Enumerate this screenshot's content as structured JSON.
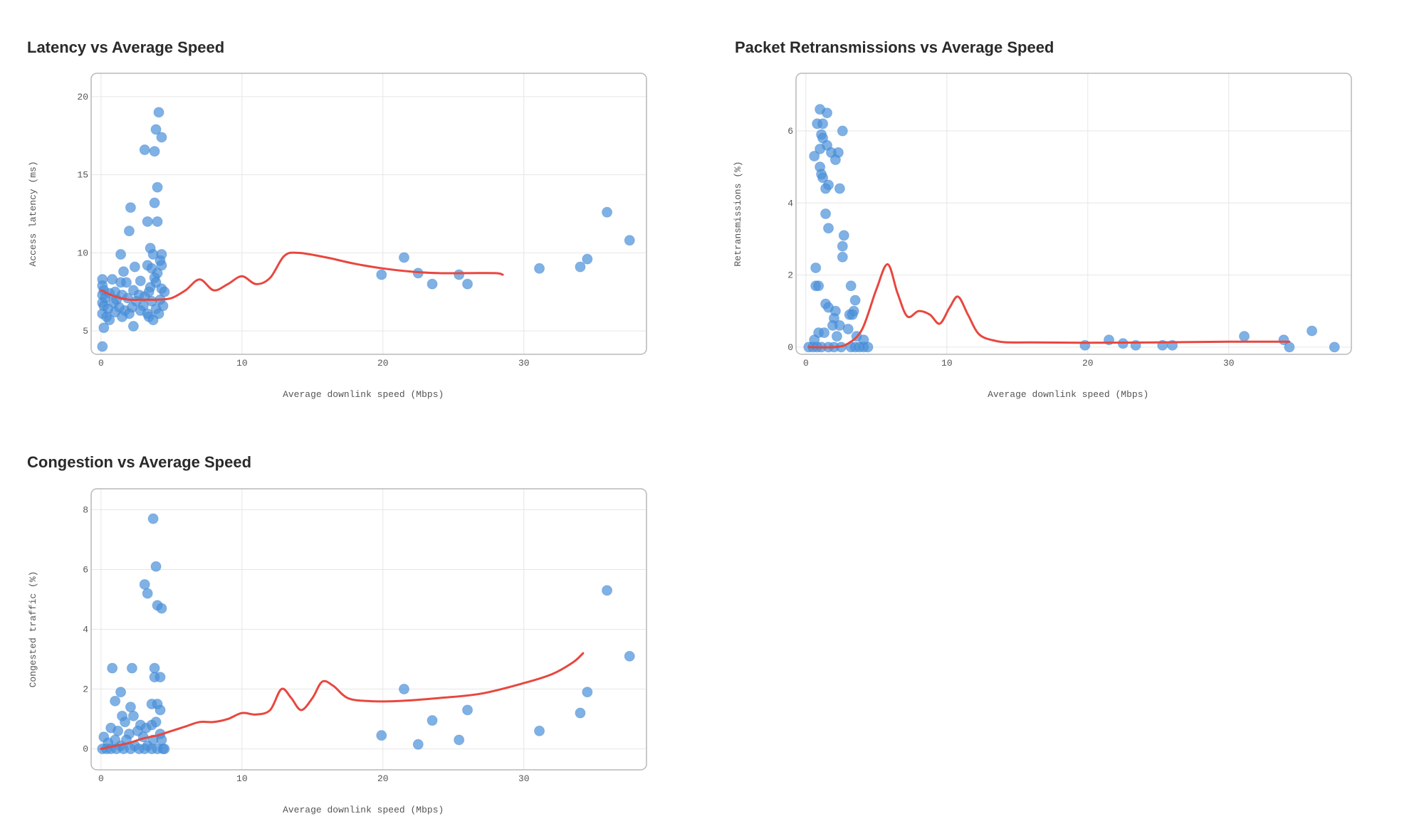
{
  "colors": {
    "points": "#4a90d9",
    "trend": "#e8473f",
    "grid": "#e6e6e6",
    "frame": "#b8b8b8"
  },
  "chart_data": [
    {
      "id": "latency",
      "type": "scatter",
      "title": "Latency vs Average Speed",
      "xlabel": "Average downlink speed (Mbps)",
      "ylabel": "Access latency (ms)",
      "xlim": [
        -0.7,
        38.7
      ],
      "ylim": [
        3.5,
        21.5
      ],
      "xticks": [
        0,
        10,
        20,
        30
      ],
      "yticks": [
        5,
        10,
        15,
        20
      ],
      "points": [
        [
          4.1,
          19.0
        ],
        [
          3.9,
          17.9
        ],
        [
          4.3,
          17.4
        ],
        [
          3.1,
          16.6
        ],
        [
          3.8,
          16.5
        ],
        [
          4.0,
          14.2
        ],
        [
          3.8,
          13.2
        ],
        [
          2.1,
          12.9
        ],
        [
          3.3,
          12.0
        ],
        [
          4.0,
          12.0
        ],
        [
          2.0,
          11.4
        ],
        [
          3.5,
          10.3
        ],
        [
          1.4,
          9.9
        ],
        [
          3.7,
          9.9
        ],
        [
          4.3,
          9.9
        ],
        [
          4.2,
          9.5
        ],
        [
          3.3,
          9.2
        ],
        [
          4.3,
          9.2
        ],
        [
          3.6,
          9.0
        ],
        [
          2.4,
          9.1
        ],
        [
          1.6,
          8.8
        ],
        [
          4.0,
          8.7
        ],
        [
          3.8,
          8.4
        ],
        [
          0.1,
          8.3
        ],
        [
          0.8,
          8.3
        ],
        [
          1.4,
          8.1
        ],
        [
          2.8,
          8.2
        ],
        [
          3.9,
          8.1
        ],
        [
          0.1,
          7.9
        ],
        [
          1.8,
          8.1
        ],
        [
          3.5,
          7.8
        ],
        [
          4.3,
          7.7
        ],
        [
          0.2,
          7.6
        ],
        [
          1.0,
          7.5
        ],
        [
          2.3,
          7.6
        ],
        [
          3.4,
          7.5
        ],
        [
          4.5,
          7.5
        ],
        [
          0.1,
          7.3
        ],
        [
          0.6,
          7.4
        ],
        [
          1.5,
          7.3
        ],
        [
          2.7,
          7.3
        ],
        [
          3.1,
          7.2
        ],
        [
          0.3,
          7.1
        ],
        [
          1.1,
          7.0
        ],
        [
          1.9,
          7.1
        ],
        [
          4.2,
          7.0
        ],
        [
          0.1,
          6.8
        ],
        [
          0.9,
          6.8
        ],
        [
          2.5,
          6.9
        ],
        [
          3.6,
          6.9
        ],
        [
          4.4,
          6.6
        ],
        [
          0.2,
          6.6
        ],
        [
          1.3,
          6.5
        ],
        [
          2.2,
          6.5
        ],
        [
          3.0,
          6.6
        ],
        [
          0.5,
          6.4
        ],
        [
          1.7,
          6.3
        ],
        [
          2.8,
          6.3
        ],
        [
          3.9,
          6.4
        ],
        [
          0.1,
          6.1
        ],
        [
          1.0,
          6.2
        ],
        [
          2.0,
          6.1
        ],
        [
          3.3,
          6.1
        ],
        [
          4.1,
          6.1
        ],
        [
          0.4,
          5.9
        ],
        [
          1.5,
          5.9
        ],
        [
          3.4,
          5.9
        ],
        [
          3.7,
          5.7
        ],
        [
          0.6,
          5.7
        ],
        [
          2.3,
          5.3
        ],
        [
          0.2,
          5.2
        ],
        [
          0.1,
          4.0
        ],
        [
          21.5,
          9.7
        ],
        [
          19.9,
          8.6
        ],
        [
          22.5,
          8.7
        ],
        [
          23.5,
          8.0
        ],
        [
          25.4,
          8.6
        ],
        [
          26.0,
          8.0
        ],
        [
          31.1,
          9.0
        ],
        [
          34.0,
          9.1
        ],
        [
          34.5,
          9.6
        ],
        [
          35.9,
          12.6
        ],
        [
          37.5,
          10.8
        ]
      ],
      "trend": [
        [
          0,
          7.6
        ],
        [
          1,
          7.2
        ],
        [
          2,
          7.0
        ],
        [
          3,
          7.0
        ],
        [
          4,
          7.0
        ],
        [
          5,
          7.1
        ],
        [
          6,
          7.6
        ],
        [
          7,
          8.3
        ],
        [
          8,
          7.6
        ],
        [
          9,
          8.0
        ],
        [
          10,
          8.5
        ],
        [
          11,
          8.0
        ],
        [
          12,
          8.4
        ],
        [
          13,
          9.8
        ],
        [
          14,
          10.0
        ],
        [
          16,
          9.7
        ],
        [
          18,
          9.3
        ],
        [
          20,
          9.0
        ],
        [
          22,
          8.8
        ],
        [
          24,
          8.7
        ],
        [
          26,
          8.7
        ],
        [
          28,
          8.7
        ],
        [
          28.5,
          8.6
        ]
      ]
    },
    {
      "id": "retransmissions",
      "type": "scatter",
      "title": "Packet Retransmissions vs Average Speed",
      "xlabel": "Average downlink speed (Mbps)",
      "ylabel": "Retransmissions (%)",
      "xlim": [
        -0.7,
        38.7
      ],
      "ylim": [
        -0.2,
        7.6
      ],
      "xticks": [
        0,
        10,
        20,
        30
      ],
      "yticks": [
        0,
        2,
        4,
        6
      ],
      "points": [
        [
          1.0,
          6.6
        ],
        [
          1.5,
          6.5
        ],
        [
          0.8,
          6.2
        ],
        [
          1.2,
          6.2
        ],
        [
          2.6,
          6.0
        ],
        [
          1.1,
          5.9
        ],
        [
          1.2,
          5.8
        ],
        [
          1.5,
          5.6
        ],
        [
          1.0,
          5.5
        ],
        [
          1.8,
          5.4
        ],
        [
          2.3,
          5.4
        ],
        [
          0.6,
          5.3
        ],
        [
          2.1,
          5.2
        ],
        [
          1.0,
          5.0
        ],
        [
          1.1,
          4.8
        ],
        [
          1.2,
          4.7
        ],
        [
          1.6,
          4.5
        ],
        [
          1.4,
          4.4
        ],
        [
          2.4,
          4.4
        ],
        [
          1.4,
          3.7
        ],
        [
          1.6,
          3.3
        ],
        [
          2.7,
          3.1
        ],
        [
          2.6,
          2.8
        ],
        [
          2.6,
          2.5
        ],
        [
          0.7,
          2.2
        ],
        [
          0.7,
          1.7
        ],
        [
          0.9,
          1.7
        ],
        [
          3.2,
          1.7
        ],
        [
          3.5,
          1.3
        ],
        [
          1.4,
          1.2
        ],
        [
          1.6,
          1.1
        ],
        [
          3.4,
          1.0
        ],
        [
          2.1,
          1.0
        ],
        [
          3.1,
          0.9
        ],
        [
          2.0,
          0.8
        ],
        [
          3.3,
          0.9
        ],
        [
          1.9,
          0.6
        ],
        [
          2.4,
          0.6
        ],
        [
          3.0,
          0.5
        ],
        [
          0.9,
          0.4
        ],
        [
          1.3,
          0.4
        ],
        [
          3.6,
          0.3
        ],
        [
          2.2,
          0.3
        ],
        [
          0.6,
          0.2
        ],
        [
          4.1,
          0.2
        ],
        [
          0.2,
          0.0
        ],
        [
          0.5,
          0.0
        ],
        [
          0.8,
          0.0
        ],
        [
          1.1,
          0.0
        ],
        [
          1.6,
          0.0
        ],
        [
          2.0,
          0.0
        ],
        [
          2.5,
          0.0
        ],
        [
          3.2,
          0.0
        ],
        [
          3.5,
          0.0
        ],
        [
          3.8,
          0.0
        ],
        [
          4.1,
          0.0
        ],
        [
          4.4,
          0.0
        ],
        [
          19.8,
          0.05
        ],
        [
          21.5,
          0.2
        ],
        [
          22.5,
          0.1
        ],
        [
          23.4,
          0.05
        ],
        [
          25.3,
          0.05
        ],
        [
          26.0,
          0.05
        ],
        [
          31.1,
          0.3
        ],
        [
          33.9,
          0.2
        ],
        [
          34.3,
          0.0
        ],
        [
          35.9,
          0.45
        ],
        [
          37.5,
          0.0
        ]
      ],
      "trend": [
        [
          0.2,
          0.0
        ],
        [
          2,
          0.0
        ],
        [
          3,
          0.1
        ],
        [
          4,
          0.5
        ],
        [
          5,
          1.6
        ],
        [
          5.8,
          2.3
        ],
        [
          6.5,
          1.5
        ],
        [
          7.2,
          0.85
        ],
        [
          8,
          1.0
        ],
        [
          8.8,
          0.9
        ],
        [
          9.5,
          0.65
        ],
        [
          10.2,
          1.1
        ],
        [
          10.8,
          1.4
        ],
        [
          11.5,
          0.9
        ],
        [
          12.3,
          0.35
        ],
        [
          13.5,
          0.17
        ],
        [
          14.5,
          0.13
        ],
        [
          16,
          0.13
        ],
        [
          20,
          0.12
        ],
        [
          25,
          0.13
        ],
        [
          30,
          0.15
        ],
        [
          34.3,
          0.15
        ]
      ]
    },
    {
      "id": "congestion",
      "type": "scatter",
      "title": "Congestion vs Average Speed",
      "xlabel": "Average downlink speed (Mbps)",
      "ylabel": "Congested traffic (%)",
      "xlim": [
        -0.7,
        38.7
      ],
      "ylim": [
        -0.7,
        8.7
      ],
      "xticks": [
        0,
        10,
        20,
        30
      ],
      "yticks": [
        0,
        2,
        4,
        6,
        8
      ],
      "points": [
        [
          3.7,
          7.7
        ],
        [
          3.9,
          6.1
        ],
        [
          3.1,
          5.5
        ],
        [
          3.3,
          5.2
        ],
        [
          4.0,
          4.8
        ],
        [
          4.3,
          4.7
        ],
        [
          0.8,
          2.7
        ],
        [
          2.2,
          2.7
        ],
        [
          3.8,
          2.7
        ],
        [
          3.8,
          2.4
        ],
        [
          4.2,
          2.4
        ],
        [
          1.4,
          1.9
        ],
        [
          1.0,
          1.6
        ],
        [
          3.6,
          1.5
        ],
        [
          4.0,
          1.5
        ],
        [
          4.2,
          1.3
        ],
        [
          2.1,
          1.4
        ],
        [
          1.5,
          1.1
        ],
        [
          2.3,
          1.1
        ],
        [
          1.7,
          0.9
        ],
        [
          2.8,
          0.8
        ],
        [
          3.2,
          0.7
        ],
        [
          3.6,
          0.8
        ],
        [
          3.9,
          0.9
        ],
        [
          0.7,
          0.7
        ],
        [
          1.2,
          0.6
        ],
        [
          2.0,
          0.5
        ],
        [
          2.6,
          0.6
        ],
        [
          4.2,
          0.5
        ],
        [
          0.2,
          0.4
        ],
        [
          1.0,
          0.3
        ],
        [
          1.8,
          0.3
        ],
        [
          3.0,
          0.4
        ],
        [
          3.7,
          0.3
        ],
        [
          4.3,
          0.3
        ],
        [
          0.5,
          0.2
        ],
        [
          1.4,
          0.1
        ],
        [
          2.4,
          0.1
        ],
        [
          3.3,
          0.1
        ],
        [
          0.1,
          0.0
        ],
        [
          0.4,
          0.0
        ],
        [
          0.7,
          0.0
        ],
        [
          1.1,
          0.0
        ],
        [
          1.6,
          0.0
        ],
        [
          2.1,
          0.0
        ],
        [
          2.7,
          0.0
        ],
        [
          3.1,
          0.0
        ],
        [
          3.6,
          0.0
        ],
        [
          4.0,
          0.0
        ],
        [
          4.4,
          0.0
        ],
        [
          4.5,
          0.0
        ],
        [
          21.5,
          2.0
        ],
        [
          19.9,
          0.45
        ],
        [
          22.5,
          0.15
        ],
        [
          23.5,
          0.95
        ],
        [
          25.4,
          0.3
        ],
        [
          26.0,
          1.3
        ],
        [
          31.1,
          0.6
        ],
        [
          34.0,
          1.2
        ],
        [
          34.5,
          1.9
        ],
        [
          35.9,
          5.3
        ],
        [
          37.5,
          3.1
        ]
      ],
      "trend": [
        [
          0,
          0.0
        ],
        [
          1,
          0.1
        ],
        [
          2,
          0.2
        ],
        [
          3,
          0.35
        ],
        [
          4,
          0.45
        ],
        [
          5,
          0.6
        ],
        [
          6,
          0.75
        ],
        [
          7,
          0.9
        ],
        [
          8,
          0.9
        ],
        [
          9,
          1.0
        ],
        [
          10,
          1.2
        ],
        [
          11,
          1.15
        ],
        [
          12,
          1.3
        ],
        [
          12.8,
          2.0
        ],
        [
          13.5,
          1.7
        ],
        [
          14.2,
          1.3
        ],
        [
          15,
          1.7
        ],
        [
          15.7,
          2.25
        ],
        [
          16.5,
          2.1
        ],
        [
          17.5,
          1.7
        ],
        [
          19,
          1.6
        ],
        [
          21,
          1.6
        ],
        [
          24,
          1.7
        ],
        [
          27,
          1.85
        ],
        [
          30,
          2.2
        ],
        [
          32,
          2.5
        ],
        [
          33.5,
          2.9
        ],
        [
          34.2,
          3.2
        ]
      ]
    }
  ]
}
